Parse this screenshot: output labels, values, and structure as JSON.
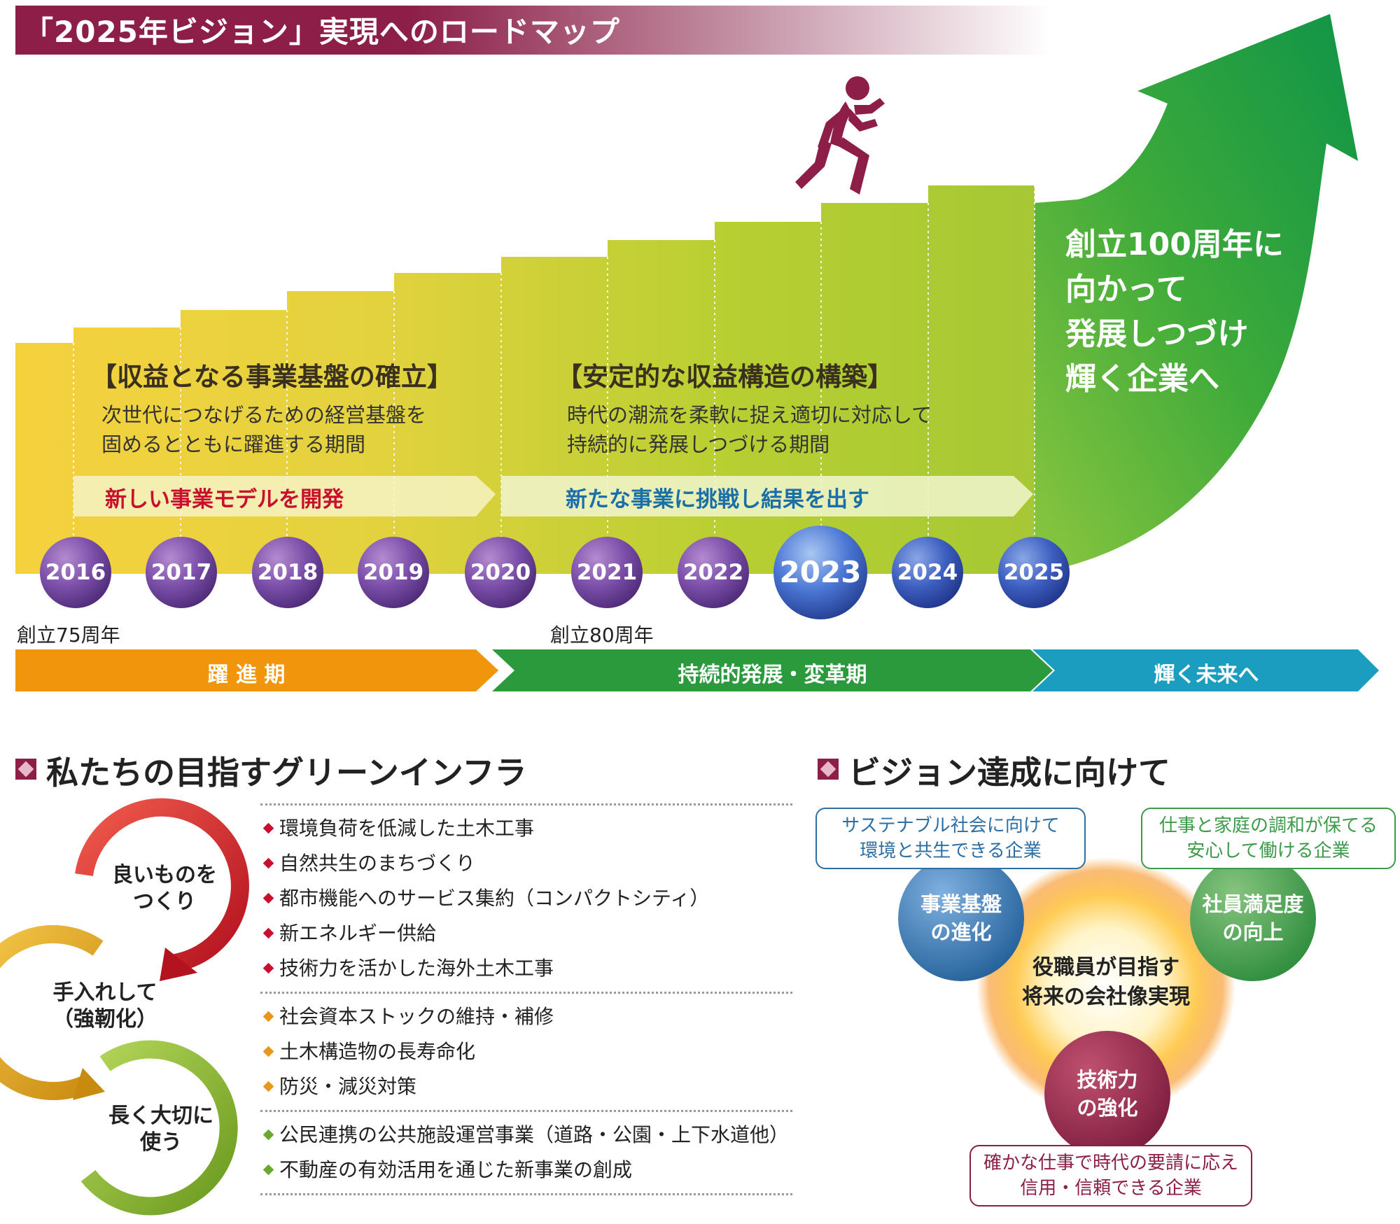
{
  "title": "「2025年ビジョン」実現へのロードマップ",
  "phases": [
    {
      "title": "【収益となる事業基盤の確立】",
      "desc": [
        "次世代につなげるための経営基盤を",
        "固めるとともに躍進する期間"
      ],
      "band": "新しい事業モデルを開発",
      "band_color": "#c8102e"
    },
    {
      "title": "【安定的な収益構造の構築】",
      "desc": [
        "時代の潮流を柔軟に捉え適切に対応して",
        "持続的に発展しつづける期間"
      ],
      "band": "新たな事業に挑戦し結果を出す",
      "band_color": "#1b6fa8"
    }
  ],
  "goal": [
    "創立100周年に",
    "向かって",
    "発展しつづけ",
    "輝く企業へ"
  ],
  "years": [
    "2016",
    "2017",
    "2018",
    "2019",
    "2020",
    "2021",
    "2022",
    "2023",
    "2024",
    "2025"
  ],
  "current_year": "2023",
  "milestones": [
    "創立75周年",
    "創立80周年"
  ],
  "timeline": [
    "躍 進 期",
    "持続的発展・変革期",
    "輝く未来へ"
  ],
  "green_infra": {
    "heading": "私たちの目指すグリーンインフラ",
    "cycle": [
      [
        "良いものを",
        "つくり"
      ],
      [
        "手入れして",
        "（強靭化）"
      ],
      [
        "長く大切に",
        "使う"
      ]
    ],
    "groups": [
      {
        "color": "#c8102e",
        "items": [
          "環境負荷を低減した土木工事",
          "自然共生のまちづくり",
          "都市機能へのサービス集約（コンパクトシティ）",
          "新エネルギー供給",
          "技術力を活かした海外土木工事"
        ]
      },
      {
        "color": "#e8961c",
        "items": [
          "社会資本ストックの維持・補修",
          "土木構造物の長寿命化",
          "防災・減災対策"
        ]
      },
      {
        "color": "#6aa832",
        "items": [
          "公民連携の公共施設運営事業（道路・公園・上下水道他）",
          "不動産の有効活用を通じた新事業の創成"
        ]
      }
    ]
  },
  "vision": {
    "heading": "ビジョン達成に向けて",
    "boxes": [
      {
        "lines": [
          "サステナブル社会に向けて",
          "環境と共生できる企業"
        ],
        "color": "#2d6fa3"
      },
      {
        "lines": [
          "仕事と家庭の調和が保てる",
          "安心して働ける企業"
        ],
        "color": "#3c9a4a"
      },
      {
        "lines": [
          "確かな仕事で時代の要請に応え",
          "信用・信頼できる企業"
        ],
        "color": "#8c1e47"
      }
    ],
    "circles": [
      {
        "lines": [
          "事業基盤",
          "の進化"
        ],
        "color": "#2d6fa3"
      },
      {
        "lines": [
          "社員満足度",
          "の向上"
        ],
        "color": "#3c9a4a"
      },
      {
        "lines": [
          "技術力",
          "の強化"
        ],
        "color": "#8c1e47"
      }
    ],
    "center": [
      "役職員が目指す",
      "将来の会社像実現"
    ]
  }
}
